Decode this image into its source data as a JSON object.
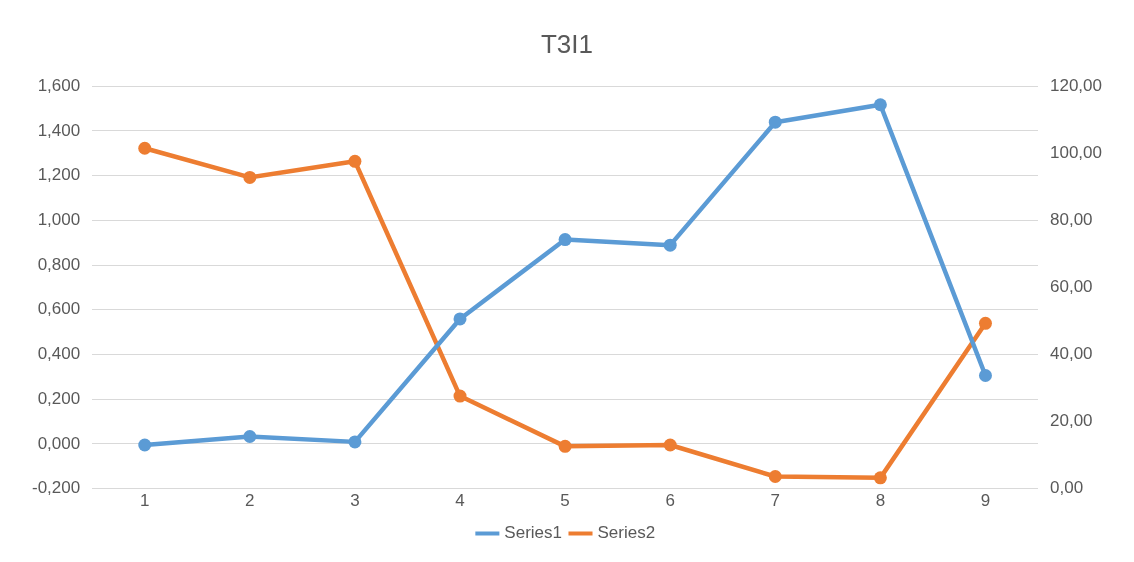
{
  "chart_data": {
    "type": "line",
    "title": "T3I1",
    "categories": [
      "1",
      "2",
      "3",
      "4",
      "5",
      "6",
      "7",
      "8",
      "9"
    ],
    "series": [
      {
        "name": "Series1",
        "color": "#5b9bd5",
        "values": [
          -0.005,
          0.033,
          0.009,
          0.559,
          0.914,
          0.889,
          1.439,
          1.517,
          0.306
        ]
      },
      {
        "name": "Series2",
        "color": "#ed7d31",
        "axis": "y2",
        "values": [
          101.5,
          92.8,
          97.6,
          27.6,
          12.6,
          13.0,
          3.6,
          3.2,
          49.3
        ]
      }
    ],
    "ylim": [
      -0.2,
      1.6
    ],
    "yticks": [
      {
        "value": -0.2,
        "label": "-0,200"
      },
      {
        "value": 0,
        "label": "0,000"
      },
      {
        "value": 0.2,
        "label": "0,200"
      },
      {
        "value": 0.4,
        "label": "0,400"
      },
      {
        "value": 0.6,
        "label": "0,600"
      },
      {
        "value": 0.8,
        "label": "0,800"
      },
      {
        "value": 1.0,
        "label": "1,000"
      },
      {
        "value": 1.2,
        "label": "1,200"
      },
      {
        "value": 1.4,
        "label": "1,400"
      },
      {
        "value": 1.6,
        "label": "1,600"
      }
    ],
    "y2lim": [
      0,
      120
    ],
    "y2ticks": [
      {
        "value": 0,
        "label": "0,00"
      },
      {
        "value": 20,
        "label": "20,00"
      },
      {
        "value": 40,
        "label": "40,00"
      },
      {
        "value": 60,
        "label": "60,00"
      },
      {
        "value": 80,
        "label": "80,00"
      },
      {
        "value": 100,
        "label": "100,00"
      },
      {
        "value": 120,
        "label": "120,00"
      }
    ],
    "grid": "y",
    "legend": "bottom",
    "marker": "circle",
    "line_style": "solid"
  }
}
